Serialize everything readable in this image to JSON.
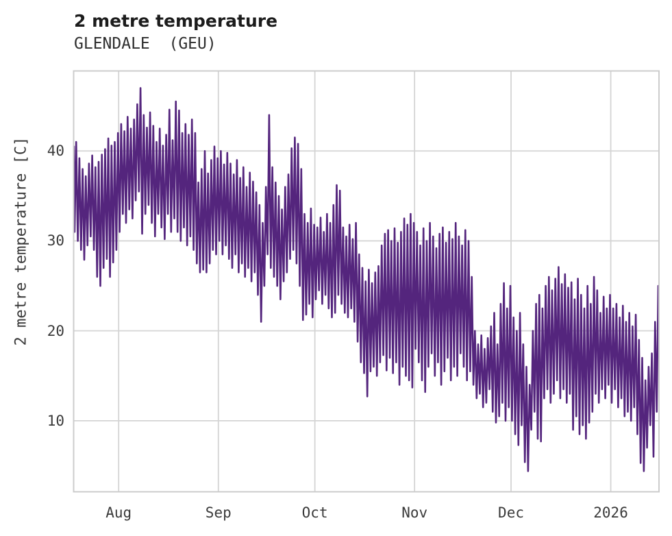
{
  "header": {
    "title": "2 metre temperature",
    "subtitle": "GLENDALE  (GEU)"
  },
  "chart_data": {
    "type": "line",
    "title": "2 metre temperature",
    "location_label": "GLENDALE (GEU)",
    "ylabel": "2 metre temperature [C]",
    "xlabel": "",
    "x_tick_labels": [
      "Aug",
      "Sep",
      "Oct",
      "Nov",
      "Dec",
      "2026"
    ],
    "x_tick_day_indices": [
      14,
      45,
      75,
      106,
      136,
      167
    ],
    "y_ticks": [
      10,
      20,
      30,
      40
    ],
    "y_tick_labels": [
      "10",
      "20",
      "30",
      "40"
    ],
    "ylim": [
      2.1,
      48.9
    ],
    "x_domain_days": 182,
    "x_range_label": "mid-Jul 2025 to mid-Jan 2026",
    "grid": true,
    "legend_position": "none",
    "line_color": "#54257D",
    "grid_color": "#d4d4d4",
    "border_color": "#cccccc",
    "series": [
      {
        "name": "2 metre temperature",
        "units": "C",
        "daily_max": [
          41.0,
          39.2,
          38.0,
          37.2,
          38.6,
          39.5,
          38.2,
          38.8,
          39.6,
          40.2,
          41.4,
          40.6,
          41.0,
          42.0,
          43.0,
          42.2,
          43.8,
          42.5,
          43.5,
          45.2,
          47.0,
          44.0,
          42.6,
          44.3,
          42.8,
          41.0,
          42.5,
          40.6,
          41.8,
          44.6,
          41.2,
          45.5,
          44.5,
          42.0,
          43.0,
          41.8,
          43.5,
          42.0,
          36.5,
          38.0,
          40.0,
          37.5,
          39.0,
          40.5,
          39.2,
          40.0,
          38.5,
          39.8,
          38.6,
          37.4,
          39.0,
          37.0,
          38.2,
          36.0,
          37.6,
          36.6,
          35.4,
          34.0,
          32.0,
          36.0,
          44.0,
          38.2,
          36.5,
          35.0,
          33.5,
          36.0,
          37.4,
          40.3,
          41.5,
          40.8,
          38.0,
          33.0,
          32.0,
          33.6,
          31.8,
          31.5,
          32.6,
          31.0,
          33.0,
          32.0,
          34.0,
          36.2,
          35.6,
          31.5,
          30.5,
          31.8,
          30.2,
          32.0,
          28.5,
          27.0,
          25.5,
          26.8,
          25.3,
          26.5,
          27.2,
          29.5,
          30.8,
          31.2,
          30.0,
          31.4,
          29.8,
          31.0,
          32.5,
          31.8,
          33.0,
          32.0,
          31.0,
          29.5,
          31.4,
          30.0,
          32.0,
          30.5,
          29.2,
          30.8,
          31.5,
          29.8,
          31.0,
          30.2,
          32.0,
          30.5,
          29.5,
          31.2,
          30.0,
          26.0,
          20.0,
          18.5,
          19.5,
          18.0,
          19.2,
          20.5,
          22.0,
          18.5,
          23.0,
          25.3,
          22.5,
          25.0,
          21.5,
          20.0,
          22.0,
          18.5,
          16.0,
          14.0,
          20.0,
          23.0,
          24.0,
          22.5,
          25.0,
          26.0,
          24.5,
          25.8,
          27.1,
          25.2,
          26.3,
          24.8,
          25.4,
          23.5,
          25.8,
          24.0,
          22.5,
          25.0,
          23.0,
          26.0,
          24.5,
          22.0,
          23.8,
          22.5,
          24.0,
          22.5,
          23.0,
          21.5,
          22.8,
          21.0,
          22.0,
          20.5,
          21.8,
          19.0,
          17.0,
          14.5,
          16.0,
          17.5,
          21.0,
          25.0
        ],
        "daily_min": [
          31.0,
          30.0,
          29.0,
          27.9,
          29.5,
          30.5,
          29.0,
          26.0,
          25.0,
          27.0,
          28.0,
          26.0,
          27.6,
          29.0,
          31.0,
          33.0,
          32.0,
          33.5,
          32.5,
          34.5,
          35.5,
          30.8,
          33.0,
          34.0,
          32.0,
          30.5,
          33.0,
          31.5,
          30.2,
          33.0,
          31.0,
          32.5,
          31.0,
          30.0,
          31.5,
          29.5,
          30.5,
          29.0,
          27.5,
          26.5,
          26.8,
          26.5,
          27.5,
          29.0,
          28.5,
          30.0,
          28.5,
          29.5,
          28.0,
          27.0,
          28.5,
          26.5,
          27.5,
          26.0,
          27.0,
          25.5,
          26.5,
          24.0,
          21.0,
          25.0,
          28.5,
          27.0,
          26.0,
          25.0,
          23.5,
          25.5,
          26.5,
          28.0,
          29.0,
          27.5,
          25.0,
          21.2,
          21.8,
          23.0,
          21.5,
          23.5,
          24.5,
          23.0,
          24.0,
          22.5,
          21.5,
          22.0,
          24.0,
          23.0,
          22.0,
          21.5,
          22.5,
          21.0,
          18.8,
          16.5,
          15.3,
          12.7,
          15.5,
          16.0,
          15.0,
          16.5,
          17.3,
          15.6,
          17.0,
          15.3,
          16.5,
          14.0,
          16.0,
          15.0,
          14.5,
          13.7,
          18.0,
          16.5,
          14.5,
          13.2,
          16.0,
          17.5,
          15.0,
          16.5,
          14.0,
          15.5,
          17.0,
          14.5,
          16.0,
          15.0,
          17.5,
          16.0,
          14.5,
          15.5,
          14.0,
          12.5,
          13.0,
          11.5,
          12.0,
          13.5,
          11.0,
          9.8,
          10.5,
          12.0,
          10.0,
          11.5,
          10.0,
          8.5,
          7.3,
          9.5,
          5.4,
          4.4,
          9.0,
          11.0,
          8.0,
          7.7,
          12.5,
          13.5,
          12.0,
          13.0,
          14.5,
          12.5,
          13.5,
          12.0,
          13.0,
          9.0,
          10.5,
          8.5,
          9.5,
          8.0,
          9.8,
          11.0,
          13.0,
          12.0,
          13.5,
          12.5,
          14.0,
          12.0,
          13.5,
          11.5,
          12.5,
          10.5,
          11.0,
          10.0,
          11.5,
          8.5,
          5.3,
          4.4,
          7.0,
          9.5,
          6.0,
          11.0
        ]
      }
    ]
  }
}
